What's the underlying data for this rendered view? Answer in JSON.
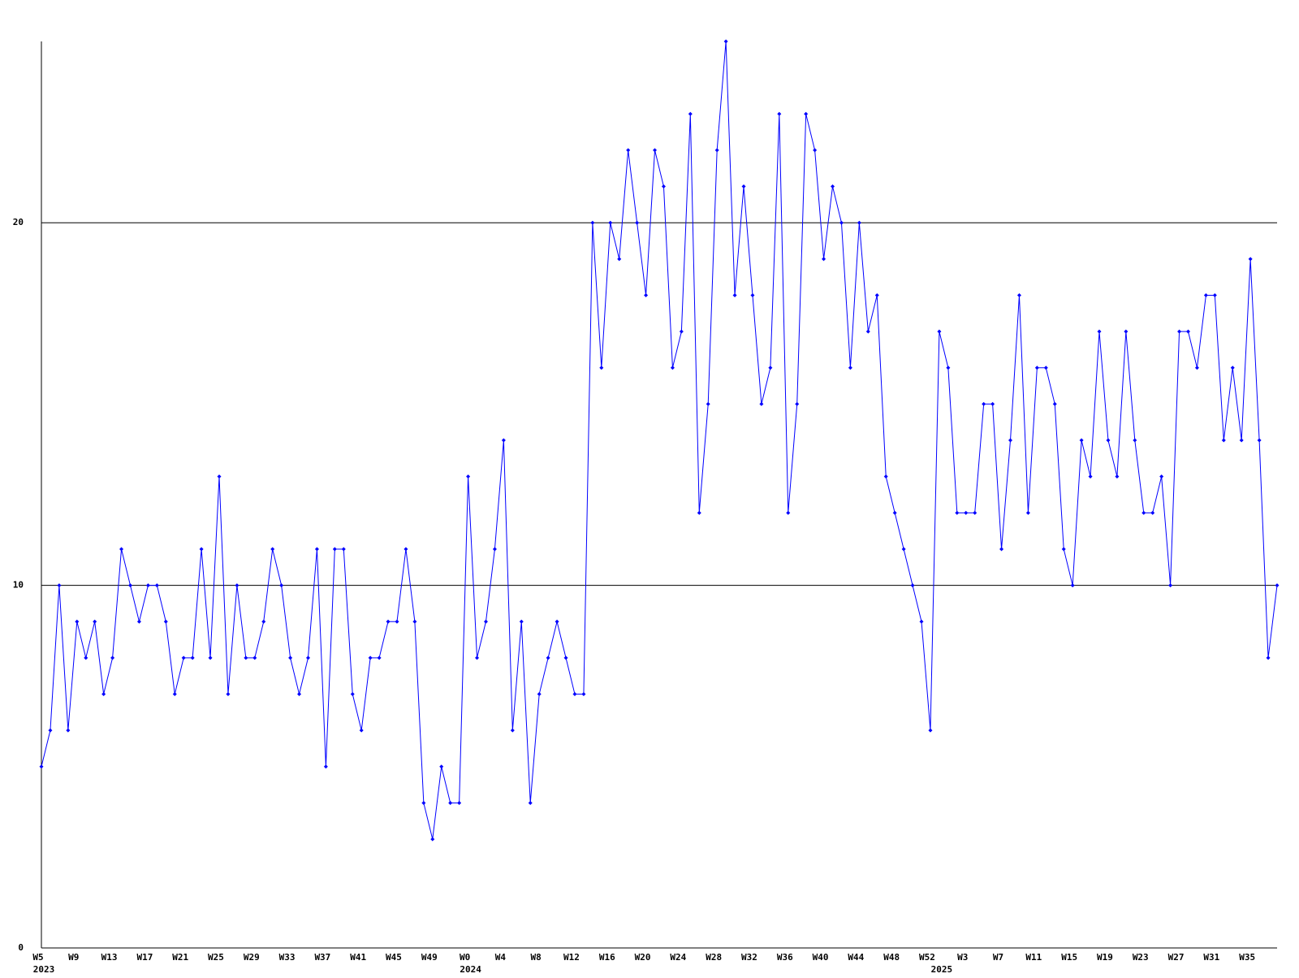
{
  "chart_data": {
    "type": "line",
    "categories": [
      "W5",
      null,
      null,
      null,
      "W9",
      null,
      null,
      null,
      "W13",
      null,
      null,
      null,
      "W17",
      null,
      null,
      null,
      "W21",
      null,
      null,
      null,
      "W25",
      null,
      null,
      null,
      "W29",
      null,
      null,
      null,
      "W33",
      null,
      null,
      null,
      "W37",
      null,
      null,
      null,
      "W41",
      null,
      null,
      null,
      "W45",
      null,
      null,
      null,
      "W49",
      null,
      null,
      null,
      "W0",
      null,
      null,
      null,
      "W4",
      null,
      null,
      null,
      "W8",
      null,
      null,
      null,
      "W12",
      null,
      null,
      null,
      "W16",
      null,
      null,
      null,
      "W20",
      null,
      null,
      null,
      "W24",
      null,
      null,
      null,
      "W28",
      null,
      null,
      null,
      "W32",
      null,
      null,
      null,
      "W36",
      null,
      null,
      null,
      "W40",
      null,
      null,
      null,
      "W44",
      null,
      null,
      null,
      "W48",
      null,
      null,
      null,
      "W52",
      null,
      null,
      null,
      "W3",
      null,
      null,
      null,
      "W7",
      null,
      null,
      null,
      "W11",
      null,
      null,
      null,
      "W15",
      null,
      null,
      null,
      "W19",
      null,
      null,
      null,
      "W23",
      null,
      null,
      null,
      "W27",
      null,
      null,
      null,
      "W31",
      null,
      null,
      null,
      "W35",
      null,
      null,
      null
    ],
    "years": [
      "2023",
      null,
      null,
      null,
      null,
      null,
      null,
      null,
      null,
      null,
      null,
      null,
      null,
      null,
      null,
      null,
      null,
      null,
      null,
      null,
      null,
      null,
      null,
      null,
      null,
      null,
      null,
      null,
      null,
      null,
      null,
      null,
      null,
      null,
      null,
      null,
      null,
      null,
      null,
      null,
      null,
      null,
      null,
      null,
      null,
      null,
      null,
      null,
      "2024",
      null,
      null,
      null,
      null,
      null,
      null,
      null,
      null,
      null,
      null,
      null,
      null,
      null,
      null,
      null,
      null,
      null,
      null,
      null,
      null,
      null,
      null,
      null,
      null,
      null,
      null,
      null,
      null,
      null,
      null,
      null,
      null,
      null,
      null,
      null,
      null,
      null,
      null,
      null,
      null,
      null,
      null,
      null,
      null,
      null,
      null,
      null,
      null,
      null,
      null,
      null,
      null,
      "2025",
      null,
      null,
      null,
      null,
      null,
      null,
      null,
      null,
      null,
      null,
      null,
      null,
      null,
      null,
      null,
      null,
      null,
      null,
      null,
      null,
      null,
      null,
      null,
      null,
      null,
      null,
      null,
      null,
      null,
      null,
      null,
      null,
      null,
      null,
      null,
      null,
      null,
      null
    ],
    "values": [
      5,
      6,
      10,
      6,
      9,
      8,
      9,
      7,
      8,
      11,
      10,
      9,
      10,
      10,
      9,
      7,
      8,
      8,
      11,
      8,
      13,
      7,
      10,
      8,
      8,
      9,
      11,
      10,
      8,
      7,
      8,
      11,
      5,
      11,
      11,
      7,
      6,
      8,
      8,
      9,
      9,
      11,
      9,
      4,
      3,
      5,
      4,
      4,
      13,
      8,
      9,
      11,
      14,
      6,
      9,
      4,
      7,
      8,
      9,
      8,
      7,
      7,
      20,
      16,
      20,
      19,
      22,
      20,
      18,
      22,
      21,
      16,
      17,
      23,
      12,
      15,
      22,
      25,
      18,
      21,
      18,
      15,
      16,
      23,
      12,
      15,
      23,
      22,
      19,
      21,
      20,
      16,
      20,
      17,
      18,
      13,
      12,
      11,
      10,
      9,
      6,
      17,
      16,
      12,
      12,
      12,
      15,
      15,
      11,
      14,
      18,
      12,
      16,
      16,
      15,
      11,
      10,
      14,
      13,
      17,
      14,
      13,
      17,
      14,
      12,
      12,
      13,
      10,
      17,
      17,
      16,
      18,
      18,
      14,
      16,
      14,
      19,
      14,
      8,
      10
    ],
    "color": "#0000ff",
    "ylim": [
      0,
      25
    ],
    "yticks": [
      0,
      10,
      20
    ],
    "grid": true
  }
}
